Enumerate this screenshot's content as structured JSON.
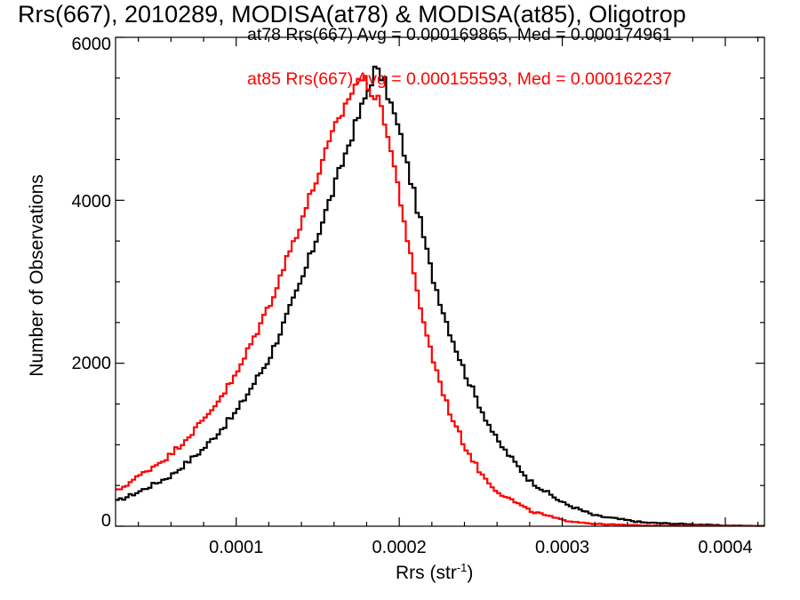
{
  "chart_data": {
    "type": "histogram",
    "title": "Rrs(667), 2010289, MODISA(at78) & MODISA(at85), Oligotrop",
    "xlabel": "Rrs (str",
    "xlabel_sup": "-1",
    "xlabel_close": ")",
    "ylabel": "Number of Observations",
    "xlim": [
      2.6e-05,
      0.000424
    ],
    "ylim": [
      0,
      6000
    ],
    "xticks": [
      0.0001,
      0.0002,
      0.0003,
      0.0004
    ],
    "xtick_labels": [
      "0.0001",
      "0.0002",
      "0.0003",
      "0.0004"
    ],
    "yticks": [
      0,
      2000,
      4000,
      6000
    ],
    "ytick_labels": [
      "0",
      "2000",
      "4000",
      "6000"
    ],
    "grid": false,
    "legend_position": "top-right",
    "series": [
      {
        "name": "at78",
        "color": "#000000",
        "stats_text": "at78 Rrs(667) Avg = 0.000169865, Med = 0.000174961",
        "profile": [
          [
            2.6e-05,
            300
          ],
          [
            4e-05,
            420
          ],
          [
            6e-05,
            620
          ],
          [
            8e-05,
            950
          ],
          [
            0.0001,
            1400
          ],
          [
            0.00012,
            2050
          ],
          [
            0.00014,
            3000
          ],
          [
            0.00016,
            4150
          ],
          [
            0.00017,
            4750
          ],
          [
            0.00018,
            5300
          ],
          [
            0.000185,
            5600
          ],
          [
            0.00019,
            5500
          ],
          [
            0.0002,
            4850
          ],
          [
            0.00021,
            4000
          ],
          [
            0.00022,
            3100
          ],
          [
            0.00023,
            2450
          ],
          [
            0.00024,
            1900
          ],
          [
            0.00025,
            1450
          ],
          [
            0.00026,
            1050
          ],
          [
            0.00028,
            560
          ],
          [
            0.0003,
            290
          ],
          [
            0.00032,
            130
          ],
          [
            0.00035,
            45
          ],
          [
            0.0004,
            8
          ],
          [
            0.000424,
            3
          ]
        ]
      },
      {
        "name": "at85",
        "color": "#ff0000",
        "stats_text": "at85 Rrs(667) Avg = 0.000155593, Med = 0.000162237",
        "profile": [
          [
            2.6e-05,
            420
          ],
          [
            4e-05,
            610
          ],
          [
            6e-05,
            880
          ],
          [
            8e-05,
            1300
          ],
          [
            0.0001,
            1850
          ],
          [
            0.00012,
            2700
          ],
          [
            0.00014,
            3750
          ],
          [
            0.00016,
            4850
          ],
          [
            0.00017,
            5300
          ],
          [
            0.000175,
            5500
          ],
          [
            0.00018,
            5450
          ],
          [
            0.00019,
            5100
          ],
          [
            0.0002,
            4100
          ],
          [
            0.00021,
            2950
          ],
          [
            0.00022,
            2100
          ],
          [
            0.00023,
            1450
          ],
          [
            0.00024,
            990
          ],
          [
            0.00025,
            650
          ],
          [
            0.00026,
            430
          ],
          [
            0.00028,
            190
          ],
          [
            0.0003,
            75
          ],
          [
            0.00032,
            28
          ],
          [
            0.00035,
            8
          ],
          [
            0.000424,
            1
          ]
        ]
      }
    ]
  }
}
